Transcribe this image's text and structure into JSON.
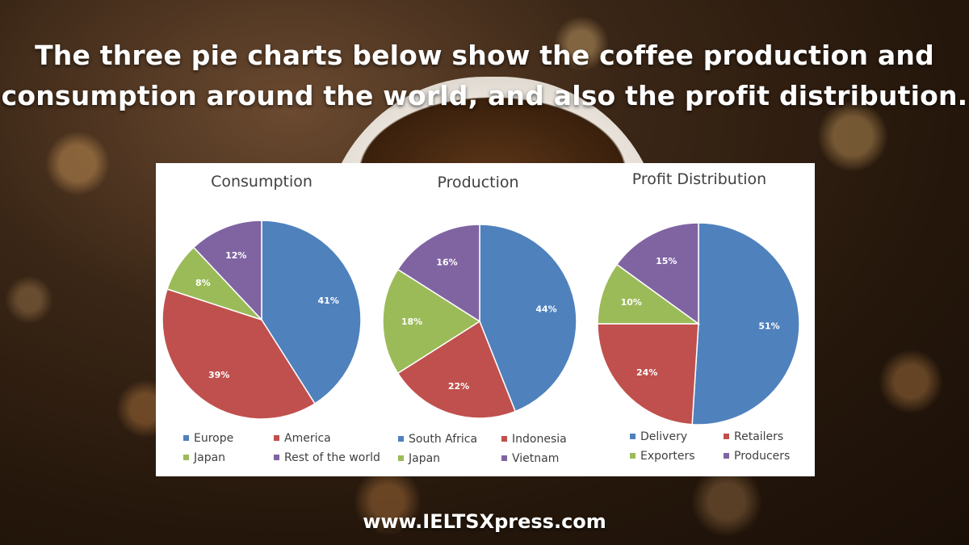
{
  "headline": {
    "line1": "The three pie charts below show the coffee production and",
    "line2": "consumption around the world, and also the profit distribution."
  },
  "footer": "www.IELTSXpress.com",
  "colors": {
    "blue": "#4F81BD",
    "red": "#C0504D",
    "green": "#9BBB59",
    "purple": "#8064A2"
  },
  "chart_data": [
    {
      "type": "pie",
      "title": "Consumption",
      "legend_position": "bottom",
      "slices": [
        {
          "label": "Europe",
          "value": 41,
          "display": "41%",
          "color": "#4F81BD"
        },
        {
          "label": "America",
          "value": 39,
          "display": "39%",
          "color": "#C0504D"
        },
        {
          "label": "Japan",
          "value": 8,
          "display": "8%",
          "color": "#9BBB59"
        },
        {
          "label": "Rest of the world",
          "value": 12,
          "display": "12%",
          "color": "#8064A2"
        }
      ]
    },
    {
      "type": "pie",
      "title": "Production",
      "legend_position": "bottom",
      "slices": [
        {
          "label": "South Africa",
          "value": 44,
          "display": "44%",
          "color": "#4F81BD"
        },
        {
          "label": "Indonesia",
          "value": 22,
          "display": "22%",
          "color": "#C0504D"
        },
        {
          "label": "Japan",
          "value": 18,
          "display": "18%",
          "color": "#9BBB59"
        },
        {
          "label": "Vietnam",
          "value": 16,
          "display": "16%",
          "color": "#8064A2"
        }
      ]
    },
    {
      "type": "pie",
      "title": "Profit Distribution",
      "legend_position": "bottom",
      "slices": [
        {
          "label": "Delivery",
          "value": 51,
          "display": "51%",
          "color": "#4F81BD"
        },
        {
          "label": "Retailers",
          "value": 24,
          "display": "24%",
          "color": "#C0504D"
        },
        {
          "label": "Exporters",
          "value": 10,
          "display": "10%",
          "color": "#9BBB59"
        },
        {
          "label": "Producers",
          "value": 15,
          "display": "15%",
          "color": "#8064A2"
        }
      ]
    }
  ]
}
